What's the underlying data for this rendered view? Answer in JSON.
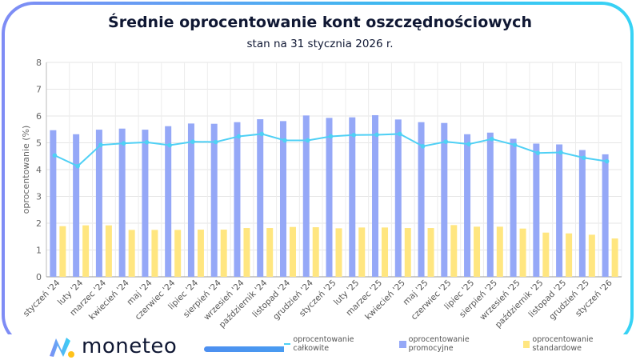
{
  "header": {
    "title": "Średnie oprocentowanie kont oszczędnościowych",
    "subtitle": "stan na 31 stycznia 2026 r."
  },
  "brand": {
    "name": "moneteo"
  },
  "colors": {
    "frame_start": "#7f8cf5",
    "frame_end": "#37d3f5",
    "total": "#4fd0f5",
    "promo": "#95a8f7",
    "standard": "#ffe680"
  },
  "chart_data": {
    "type": "bar",
    "title": "Średnie oprocentowanie kont oszczędnościowych",
    "subtitle": "stan na 31 stycznia 2026 r.",
    "xlabel": "",
    "ylabel": "oprocentowanie (%)",
    "ylim": [
      0,
      8
    ],
    "yticks": [
      0,
      1,
      2,
      3,
      4,
      5,
      6,
      7,
      8
    ],
    "grid": true,
    "legend": "bottom-right",
    "categories": [
      "styczeń '24",
      "luty '24",
      "marzec '24",
      "kwiecień '24",
      "maj '24",
      "czerwiec '24",
      "lipiec '24",
      "sierpień '24",
      "wrzesień '24",
      "październik '24",
      "listopad '24",
      "grudzień '24",
      "styczeń '25",
      "luty '25",
      "marzec '25",
      "kwiecień '25",
      "maj '25",
      "czerwiec '25",
      "lipiec '25",
      "sierpień '25",
      "wrzesień '25",
      "październik '25",
      "listopad '25",
      "grudzień '25",
      "styczeń '26"
    ],
    "series": [
      {
        "name": "oprocentowanie całkowite",
        "type": "line",
        "color": "#4fd0f5",
        "values": [
          4.53,
          4.13,
          4.92,
          4.98,
          5.02,
          4.91,
          5.04,
          5.03,
          5.24,
          5.33,
          5.09,
          5.09,
          5.24,
          5.29,
          5.3,
          5.33,
          4.87,
          5.04,
          4.95,
          5.14,
          4.92,
          4.62,
          4.64,
          4.44,
          4.31
        ]
      },
      {
        "name": "oprocentowanie promocyjne",
        "type": "bar",
        "color": "#95a8f7",
        "values": [
          5.47,
          5.32,
          5.49,
          5.53,
          5.49,
          5.62,
          5.72,
          5.71,
          5.77,
          5.88,
          5.81,
          6.02,
          5.93,
          5.95,
          6.03,
          5.87,
          5.77,
          5.74,
          5.32,
          5.38,
          5.15,
          4.97,
          4.94,
          4.73,
          4.57
        ]
      },
      {
        "name": "oprocentowanie standardowe",
        "type": "bar",
        "color": "#ffe680",
        "values": [
          1.89,
          1.92,
          1.92,
          1.75,
          1.75,
          1.75,
          1.76,
          1.76,
          1.82,
          1.82,
          1.86,
          1.85,
          1.81,
          1.84,
          1.84,
          1.82,
          1.82,
          1.93,
          1.87,
          1.87,
          1.8,
          1.65,
          1.62,
          1.57,
          1.43
        ]
      }
    ]
  }
}
